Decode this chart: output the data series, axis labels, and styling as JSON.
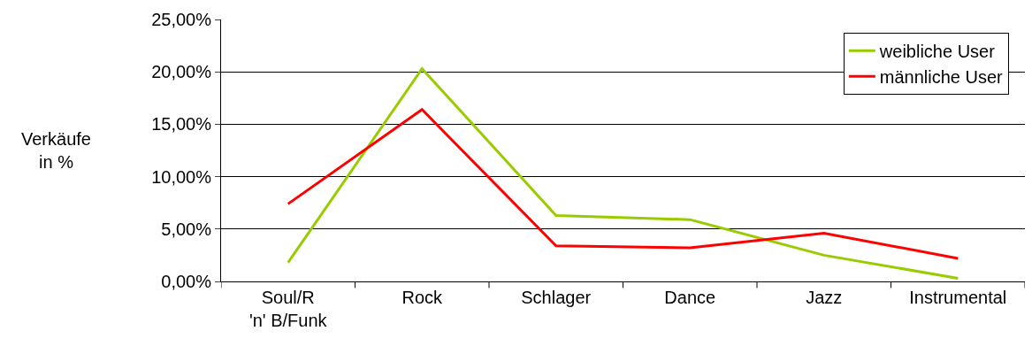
{
  "chart_data": {
    "type": "line",
    "ylabel": "Verkäufe in %",
    "categories": [
      "Soul/R 'n' B/Funk",
      "Rock",
      "Schlager",
      "Dance",
      "Jazz",
      "Instrumental"
    ],
    "series": [
      {
        "name": "weibliche User",
        "color": "#99cc00",
        "values": [
          1.8,
          20.3,
          6.3,
          5.9,
          2.5,
          0.3
        ]
      },
      {
        "name": "männliche User",
        "color": "#ff0000",
        "values": [
          7.4,
          16.4,
          3.4,
          3.2,
          4.6,
          2.2
        ]
      }
    ],
    "ylim": [
      0,
      25
    ],
    "yticks": [
      {
        "value": 0,
        "label": "0,00%"
      },
      {
        "value": 5,
        "label": "5,00%"
      },
      {
        "value": 10,
        "label": "10,00%"
      },
      {
        "value": 15,
        "label": "15,00%"
      },
      {
        "value": 20,
        "label": "20,00%"
      },
      {
        "value": 25,
        "label": "25,00%"
      }
    ],
    "grid": "y",
    "legend": "top right",
    "marker": "none",
    "line_style": "solid"
  }
}
